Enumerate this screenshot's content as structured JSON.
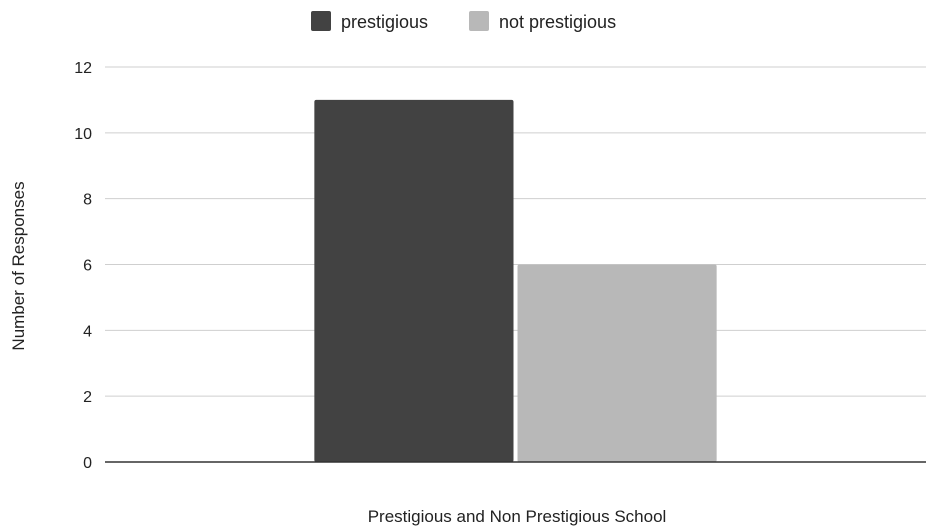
{
  "chart_data": {
    "type": "bar",
    "title": "",
    "xlabel": "Prestigious and Non Prestigious School",
    "ylabel": "Number of Responses",
    "categories": [
      ""
    ],
    "series": [
      {
        "name": "prestigious",
        "values": [
          11
        ],
        "color": "#424242"
      },
      {
        "name": "not prestigious",
        "values": [
          6
        ],
        "color": "#b8b8b8"
      }
    ],
    "ylim": [
      0,
      12
    ],
    "yticks": [
      0,
      2,
      4,
      6,
      8,
      10,
      12
    ],
    "grid": true,
    "legend": "top-center"
  }
}
